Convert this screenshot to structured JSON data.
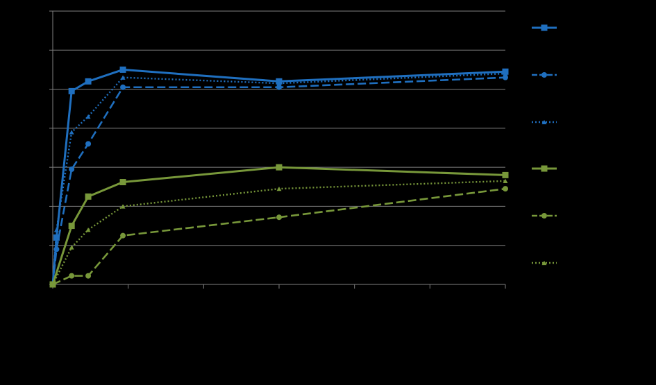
{
  "chart_data": {
    "type": "line",
    "xlim": [
      0,
      60
    ],
    "ylim": [
      0,
      7
    ],
    "grid": true,
    "legend_position": "right",
    "x_ticks": [
      0,
      10,
      20,
      30,
      40,
      50,
      60
    ],
    "y_ticks": [
      0,
      1,
      2,
      3,
      4,
      5,
      6,
      7
    ],
    "colors": {
      "blue": "#1f6fbf",
      "green": "#78983a",
      "grid": "#7f7f7f",
      "axis": "#7f7f7f"
    },
    "series": [
      {
        "color": "#1f6fbf",
        "dash": "solid",
        "marker": "square",
        "x": [
          0,
          0.5,
          2.5,
          4.7,
          9.3,
          30,
          60
        ],
        "y": [
          0,
          1.2,
          4.95,
          5.2,
          5.5,
          5.2,
          5.45
        ]
      },
      {
        "color": "#1f6fbf",
        "dash": "dashed",
        "marker": "circle",
        "x": [
          0,
          0.5,
          2.5,
          4.7,
          9.3,
          30,
          60
        ],
        "y": [
          0,
          0.9,
          2.95,
          3.6,
          5.05,
          5.05,
          5.3
        ]
      },
      {
        "color": "#1f6fbf",
        "dash": "dotted",
        "marker": "triangle",
        "x": [
          0,
          0.5,
          2.5,
          4.7,
          9.3,
          30,
          60
        ],
        "y": [
          0,
          1.4,
          3.9,
          4.3,
          5.3,
          5.15,
          5.4
        ]
      },
      {
        "color": "#78983a",
        "dash": "solid",
        "marker": "square",
        "x": [
          0,
          2.5,
          4.7,
          9.3,
          30,
          60
        ],
        "y": [
          0,
          1.5,
          2.25,
          2.62,
          3.0,
          2.8
        ]
      },
      {
        "color": "#78983a",
        "dash": "dashed",
        "marker": "circle",
        "x": [
          0,
          2.5,
          4.7,
          9.3,
          30,
          60
        ],
        "y": [
          0,
          0.22,
          0.22,
          1.25,
          1.72,
          2.45
        ]
      },
      {
        "color": "#78983a",
        "dash": "dotted",
        "marker": "triangle",
        "x": [
          0,
          2.5,
          4.7,
          9.3,
          30,
          60
        ],
        "y": [
          0,
          0.95,
          1.4,
          2.0,
          2.45,
          2.65
        ]
      }
    ]
  }
}
